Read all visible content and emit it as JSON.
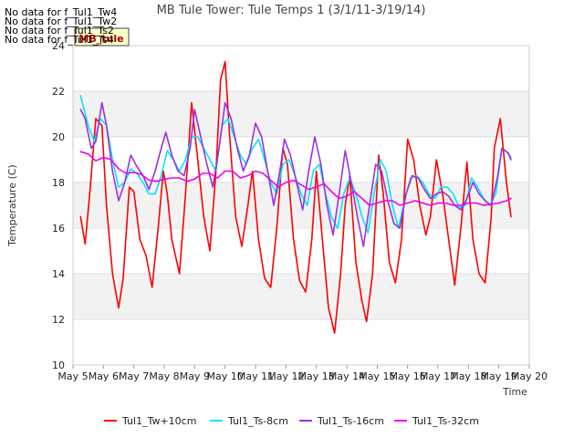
{
  "no_data_messages": [
    "No data for f_Tul1_Tw4",
    "No data for f_Tul1_Tw2",
    "No data for f_Tul1_Ts2",
    "No data for f_Tul1_Ts4"
  ],
  "badge_label": "MB_tule",
  "chart_data": {
    "type": "line",
    "title": "MB Tule Tower: Tule Temps 1 (3/1/11-3/19/14)",
    "xlabel": "Time",
    "ylabel": "Temperature (C)",
    "xlim": [
      5,
      20
    ],
    "ylim": [
      10,
      24
    ],
    "x_ticks": [
      5,
      6,
      7,
      8,
      9,
      10,
      11,
      12,
      13,
      14,
      15,
      16,
      17,
      18,
      19,
      20
    ],
    "x_tick_labels": [
      "May 5",
      "May 6",
      "May 7",
      "May 8",
      "May 9",
      "May 10",
      "May 11",
      "May 12",
      "May 13",
      "May 14",
      "May 15",
      "May 16",
      "May 17",
      "May 18",
      "May 19",
      "May 20"
    ],
    "y_ticks": [
      10,
      12,
      14,
      16,
      18,
      20,
      22,
      24
    ],
    "y_tick_labels": [
      "10",
      "12",
      "14",
      "16",
      "18",
      "20",
      "22",
      "24"
    ],
    "bands": [
      [
        12,
        14
      ],
      [
        16,
        18
      ],
      [
        20,
        22
      ]
    ],
    "series": [
      {
        "name": "Tul1_Tw+10cm",
        "color": "#ff0000",
        "points": [
          [
            5.25,
            16.5
          ],
          [
            5.4,
            15.3
          ],
          [
            5.55,
            17.5
          ],
          [
            5.75,
            20.8
          ],
          [
            5.95,
            20.5
          ],
          [
            6.1,
            17.0
          ],
          [
            6.3,
            14.0
          ],
          [
            6.5,
            12.5
          ],
          [
            6.65,
            13.8
          ],
          [
            6.85,
            17.8
          ],
          [
            7.0,
            17.6
          ],
          [
            7.2,
            15.5
          ],
          [
            7.4,
            14.8
          ],
          [
            7.6,
            13.4
          ],
          [
            7.8,
            16.0
          ],
          [
            7.97,
            18.5
          ],
          [
            8.1,
            17.5
          ],
          [
            8.25,
            15.5
          ],
          [
            8.5,
            14.0
          ],
          [
            8.7,
            17.5
          ],
          [
            8.9,
            21.5
          ],
          [
            9.1,
            19.0
          ],
          [
            9.3,
            16.5
          ],
          [
            9.5,
            15.0
          ],
          [
            9.7,
            18.5
          ],
          [
            9.85,
            22.5
          ],
          [
            10.0,
            23.3
          ],
          [
            10.15,
            20.0
          ],
          [
            10.35,
            16.5
          ],
          [
            10.55,
            15.2
          ],
          [
            10.75,
            17.0
          ],
          [
            10.9,
            18.5
          ],
          [
            11.1,
            15.5
          ],
          [
            11.3,
            13.8
          ],
          [
            11.5,
            13.4
          ],
          [
            11.7,
            16.0
          ],
          [
            11.9,
            19.5
          ],
          [
            12.05,
            18.8
          ],
          [
            12.25,
            15.5
          ],
          [
            12.45,
            13.7
          ],
          [
            12.65,
            13.2
          ],
          [
            12.85,
            15.5
          ],
          [
            13.0,
            18.5
          ],
          [
            13.2,
            15.5
          ],
          [
            13.4,
            12.5
          ],
          [
            13.6,
            11.4
          ],
          [
            13.8,
            14.0
          ],
          [
            13.95,
            17.0
          ],
          [
            14.1,
            18.3
          ],
          [
            14.3,
            14.5
          ],
          [
            14.5,
            12.8
          ],
          [
            14.65,
            11.9
          ],
          [
            14.85,
            14.0
          ],
          [
            15.05,
            19.2
          ],
          [
            15.2,
            17.5
          ],
          [
            15.4,
            14.5
          ],
          [
            15.6,
            13.6
          ],
          [
            15.8,
            15.5
          ],
          [
            16.0,
            19.9
          ],
          [
            16.2,
            19.0
          ],
          [
            16.4,
            17.0
          ],
          [
            16.6,
            15.7
          ],
          [
            16.75,
            16.5
          ],
          [
            16.95,
            19.0
          ],
          [
            17.15,
            17.5
          ],
          [
            17.35,
            15.5
          ],
          [
            17.55,
            13.5
          ],
          [
            17.75,
            16.0
          ],
          [
            17.95,
            18.9
          ],
          [
            18.15,
            15.5
          ],
          [
            18.35,
            14.0
          ],
          [
            18.55,
            13.6
          ],
          [
            18.75,
            16.5
          ],
          [
            18.85,
            19.5
          ],
          [
            19.05,
            20.8
          ],
          [
            19.25,
            18.0
          ],
          [
            19.4,
            16.5
          ]
        ]
      },
      {
        "name": "Tul1_Ts-8cm",
        "color": "#00e5ff",
        "points": [
          [
            5.25,
            21.8
          ],
          [
            5.5,
            20.5
          ],
          [
            5.7,
            19.8
          ],
          [
            5.9,
            20.8
          ],
          [
            6.1,
            20.5
          ],
          [
            6.3,
            19.0
          ],
          [
            6.5,
            17.8
          ],
          [
            6.7,
            18.0
          ],
          [
            6.9,
            18.6
          ],
          [
            7.1,
            18.4
          ],
          [
            7.3,
            18.0
          ],
          [
            7.5,
            17.5
          ],
          [
            7.7,
            17.5
          ],
          [
            7.9,
            18.3
          ],
          [
            8.1,
            19.4
          ],
          [
            8.3,
            19.0
          ],
          [
            8.5,
            18.5
          ],
          [
            8.7,
            19.0
          ],
          [
            8.9,
            20.0
          ],
          [
            9.1,
            20.0
          ],
          [
            9.3,
            19.5
          ],
          [
            9.5,
            19.0
          ],
          [
            9.7,
            18.5
          ],
          [
            9.9,
            20.5
          ],
          [
            10.1,
            20.8
          ],
          [
            10.3,
            20.0
          ],
          [
            10.5,
            19.2
          ],
          [
            10.7,
            18.8
          ],
          [
            10.9,
            19.5
          ],
          [
            11.1,
            19.9
          ],
          [
            11.3,
            19.0
          ],
          [
            11.5,
            18.0
          ],
          [
            11.7,
            17.5
          ],
          [
            11.9,
            18.8
          ],
          [
            12.1,
            19.0
          ],
          [
            12.3,
            18.3
          ],
          [
            12.5,
            17.5
          ],
          [
            12.7,
            17.0
          ],
          [
            12.9,
            18.5
          ],
          [
            13.1,
            18.8
          ],
          [
            13.3,
            17.5
          ],
          [
            13.5,
            16.5
          ],
          [
            13.7,
            16.0
          ],
          [
            13.9,
            17.5
          ],
          [
            14.1,
            18.2
          ],
          [
            14.3,
            17.5
          ],
          [
            14.5,
            16.5
          ],
          [
            14.7,
            15.8
          ],
          [
            14.9,
            17.5
          ],
          [
            15.1,
            19.0
          ],
          [
            15.3,
            18.5
          ],
          [
            15.5,
            17.0
          ],
          [
            15.7,
            16.0
          ],
          [
            15.9,
            17.2
          ],
          [
            16.1,
            18.2
          ],
          [
            16.3,
            18.3
          ],
          [
            16.5,
            18.0
          ],
          [
            16.7,
            17.5
          ],
          [
            16.9,
            17.3
          ],
          [
            17.1,
            17.8
          ],
          [
            17.3,
            17.8
          ],
          [
            17.5,
            17.5
          ],
          [
            17.7,
            16.9
          ],
          [
            17.9,
            17.0
          ],
          [
            18.1,
            18.2
          ],
          [
            18.3,
            17.8
          ],
          [
            18.5,
            17.3
          ],
          [
            18.7,
            17.0
          ],
          [
            18.9,
            17.5
          ],
          [
            19.1,
            19.5
          ],
          [
            19.3,
            19.3
          ],
          [
            19.4,
            19.1
          ]
        ]
      },
      {
        "name": "Tul1_Ts-16cm",
        "color": "#9b30e0",
        "points": [
          [
            5.25,
            21.2
          ],
          [
            5.4,
            20.8
          ],
          [
            5.6,
            19.5
          ],
          [
            5.75,
            19.8
          ],
          [
            5.95,
            21.5
          ],
          [
            6.1,
            20.5
          ],
          [
            6.3,
            18.5
          ],
          [
            6.5,
            17.2
          ],
          [
            6.7,
            18.0
          ],
          [
            6.9,
            19.2
          ],
          [
            7.1,
            18.7
          ],
          [
            7.3,
            18.3
          ],
          [
            7.5,
            17.7
          ],
          [
            7.7,
            18.5
          ],
          [
            7.9,
            19.5
          ],
          [
            8.05,
            20.2
          ],
          [
            8.25,
            19.2
          ],
          [
            8.45,
            18.5
          ],
          [
            8.65,
            18.3
          ],
          [
            8.85,
            19.5
          ],
          [
            9.0,
            21.2
          ],
          [
            9.2,
            20.0
          ],
          [
            9.4,
            18.8
          ],
          [
            9.6,
            17.8
          ],
          [
            9.8,
            19.5
          ],
          [
            10.0,
            21.5
          ],
          [
            10.2,
            20.8
          ],
          [
            10.4,
            19.5
          ],
          [
            10.6,
            18.5
          ],
          [
            10.8,
            19.2
          ],
          [
            11.0,
            20.6
          ],
          [
            11.2,
            20.0
          ],
          [
            11.4,
            18.5
          ],
          [
            11.6,
            17.0
          ],
          [
            11.8,
            18.5
          ],
          [
            11.95,
            19.9
          ],
          [
            12.15,
            19.2
          ],
          [
            12.35,
            18.0
          ],
          [
            12.55,
            16.8
          ],
          [
            12.75,
            18.5
          ],
          [
            12.95,
            20.0
          ],
          [
            13.15,
            18.8
          ],
          [
            13.35,
            17.0
          ],
          [
            13.55,
            15.7
          ],
          [
            13.75,
            17.5
          ],
          [
            13.95,
            19.4
          ],
          [
            14.15,
            18.0
          ],
          [
            14.35,
            16.5
          ],
          [
            14.55,
            15.2
          ],
          [
            14.75,
            17.0
          ],
          [
            14.95,
            18.8
          ],
          [
            15.15,
            18.5
          ],
          [
            15.35,
            17.2
          ],
          [
            15.55,
            16.2
          ],
          [
            15.75,
            16.0
          ],
          [
            15.95,
            17.5
          ],
          [
            16.15,
            18.3
          ],
          [
            16.35,
            18.2
          ],
          [
            16.55,
            17.7
          ],
          [
            16.75,
            17.3
          ],
          [
            16.95,
            17.5
          ],
          [
            17.15,
            17.6
          ],
          [
            17.35,
            17.4
          ],
          [
            17.55,
            17.0
          ],
          [
            17.75,
            16.8
          ],
          [
            17.95,
            17.3
          ],
          [
            18.15,
            18.0
          ],
          [
            18.35,
            17.5
          ],
          [
            18.55,
            17.2
          ],
          [
            18.75,
            17.0
          ],
          [
            18.95,
            18.2
          ],
          [
            19.1,
            19.5
          ],
          [
            19.3,
            19.3
          ],
          [
            19.4,
            19.0
          ]
        ]
      },
      {
        "name": "Tul1_Ts-32cm",
        "color": "#ee00ee",
        "points": [
          [
            5.25,
            19.35
          ],
          [
            5.5,
            19.25
          ],
          [
            5.75,
            18.95
          ],
          [
            6.0,
            19.1
          ],
          [
            6.25,
            19.0
          ],
          [
            6.5,
            18.6
          ],
          [
            6.75,
            18.4
          ],
          [
            7.0,
            18.45
          ],
          [
            7.25,
            18.35
          ],
          [
            7.5,
            18.1
          ],
          [
            7.75,
            18.05
          ],
          [
            8.0,
            18.15
          ],
          [
            8.25,
            18.2
          ],
          [
            8.5,
            18.2
          ],
          [
            8.75,
            18.05
          ],
          [
            9.0,
            18.15
          ],
          [
            9.25,
            18.4
          ],
          [
            9.5,
            18.4
          ],
          [
            9.75,
            18.2
          ],
          [
            10.0,
            18.5
          ],
          [
            10.25,
            18.5
          ],
          [
            10.5,
            18.2
          ],
          [
            10.75,
            18.3
          ],
          [
            11.0,
            18.5
          ],
          [
            11.25,
            18.4
          ],
          [
            11.5,
            18.1
          ],
          [
            11.75,
            17.8
          ],
          [
            12.0,
            18.0
          ],
          [
            12.25,
            18.1
          ],
          [
            12.5,
            17.9
          ],
          [
            12.75,
            17.7
          ],
          [
            13.0,
            17.8
          ],
          [
            13.25,
            17.95
          ],
          [
            13.5,
            17.6
          ],
          [
            13.75,
            17.3
          ],
          [
            14.0,
            17.4
          ],
          [
            14.25,
            17.6
          ],
          [
            14.5,
            17.3
          ],
          [
            14.75,
            17.0
          ],
          [
            15.0,
            17.1
          ],
          [
            15.25,
            17.2
          ],
          [
            15.5,
            17.2
          ],
          [
            15.75,
            17.0
          ],
          [
            16.0,
            17.1
          ],
          [
            16.25,
            17.2
          ],
          [
            16.5,
            17.1
          ],
          [
            16.75,
            17.0
          ],
          [
            17.0,
            17.1
          ],
          [
            17.25,
            17.1
          ],
          [
            17.5,
            17.0
          ],
          [
            17.75,
            17.0
          ],
          [
            18.0,
            17.1
          ],
          [
            18.25,
            17.1
          ],
          [
            18.5,
            17.0
          ],
          [
            18.75,
            17.05
          ],
          [
            19.0,
            17.1
          ],
          [
            19.25,
            17.2
          ],
          [
            19.4,
            17.3
          ]
        ]
      }
    ]
  }
}
